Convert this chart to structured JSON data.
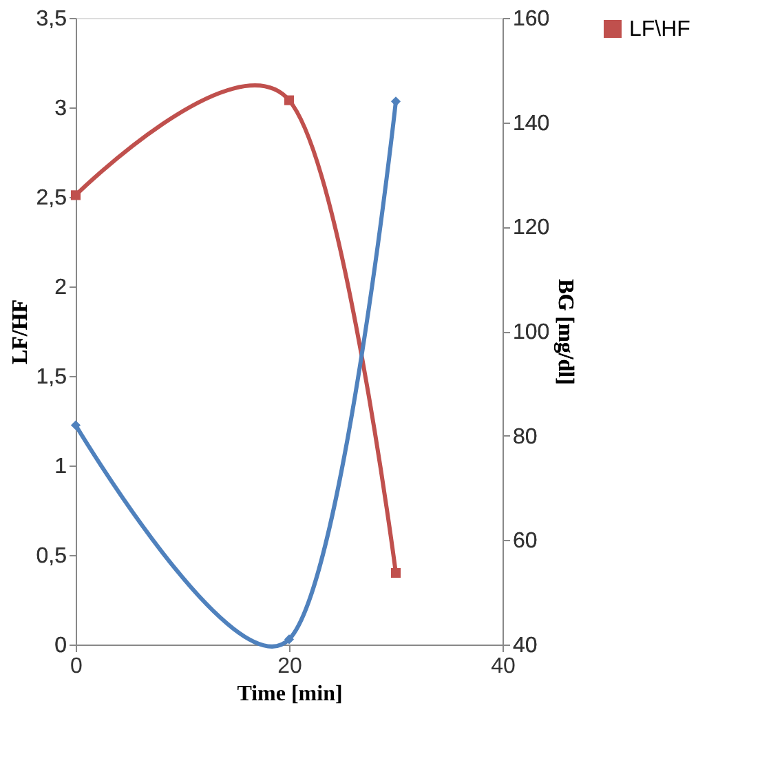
{
  "chart_data": {
    "type": "line",
    "xlabel": "Time [min]",
    "ylabel": "LF/HF",
    "y2label": "BG [mg/dl]",
    "x": [
      0,
      20,
      30
    ],
    "series": [
      {
        "name": "LF\\HF",
        "color": "#c0504d",
        "values": [
          2.51,
          3.04,
          0.4
        ],
        "marker": "square"
      },
      {
        "color": "#4f81bd",
        "values": [
          82,
          41,
          144
        ],
        "axis": "y2",
        "marker": "diamond"
      }
    ],
    "xlim": [
      0,
      40
    ],
    "xticks": [
      0,
      20,
      40
    ],
    "ylim": [
      0,
      3.5
    ],
    "yticks": [
      0,
      {
        "value": 0.5,
        "label": "0,5"
      },
      1,
      {
        "value": 1.5,
        "label": "1,5"
      },
      2,
      {
        "value": 2.5,
        "label": "2,5"
      },
      3,
      {
        "value": 3.5,
        "label": "3,5"
      }
    ],
    "y2lim": [
      40,
      160
    ],
    "y2ticks": [
      40,
      60,
      80,
      100,
      120,
      140,
      160
    ],
    "grid": false,
    "legend": "right",
    "line_style": "solid"
  }
}
